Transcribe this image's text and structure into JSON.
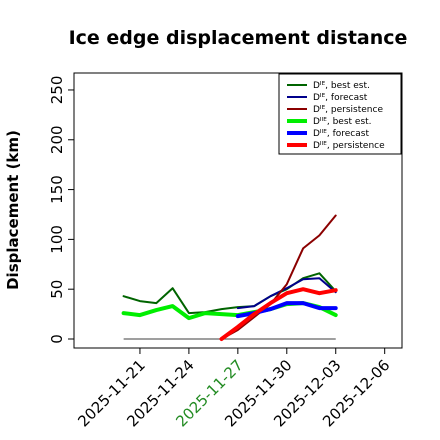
{
  "chart_data": {
    "type": "line",
    "title": "Ice edge displacement distance",
    "ylabel": "Displacement (km)",
    "xlabel": "",
    "ylim": [
      0,
      260
    ],
    "yticks": [
      "0",
      "50",
      "100",
      "150",
      "200",
      "250"
    ],
    "xlim": [
      "2025-11-18",
      "2025-12-07"
    ],
    "xticks": [
      "2025-11-21",
      "2025-11-24",
      "2025-11-27",
      "2025-11-30",
      "2025-12-03",
      "2025-12-06"
    ],
    "highlighted_xtick": "2025-11-27",
    "highlight_color": "#228B22",
    "grid": false,
    "legend_position": "top-right",
    "reference_line": {
      "x": [
        "2025-11-20",
        "2025-12-03"
      ],
      "y": 0,
      "color": "#666666"
    },
    "series": [
      {
        "name": "Dᴵᴱ, best est.",
        "color": "#006400",
        "width": 2,
        "x": [
          "2025-11-20",
          "2025-11-21",
          "2025-11-22",
          "2025-11-23",
          "2025-11-24",
          "2025-11-25",
          "2025-11-26",
          "2025-11-27",
          "2025-11-28",
          "2025-11-29",
          "2025-11-30",
          "2025-12-01",
          "2025-12-02",
          "2025-12-03"
        ],
        "values": [
          43,
          38,
          36,
          51,
          26,
          27,
          30,
          32,
          33,
          43,
          50,
          61,
          66,
          48
        ]
      },
      {
        "name": "Dᴵᴱ, forecast",
        "color": "#00008B",
        "width": 2,
        "x": [
          "2025-11-27",
          "2025-11-28",
          "2025-11-29",
          "2025-11-30",
          "2025-12-01",
          "2025-12-02",
          "2025-12-03"
        ],
        "values": [
          31,
          33,
          43,
          51,
          60,
          61,
          47
        ]
      },
      {
        "name": "Dᴵᴱ, persistence",
        "color": "#8B0000",
        "width": 2,
        "x": [
          "2025-11-26",
          "2025-11-27",
          "2025-11-28",
          "2025-11-29",
          "2025-11-30",
          "2025-12-01",
          "2025-12-02",
          "2025-12-03"
        ],
        "values": [
          0,
          9,
          22,
          35,
          55,
          91,
          104,
          124
        ]
      },
      {
        "name": "Dᴵᴵᴱ, best est.",
        "color": "#00EE00",
        "width": 4,
        "x": [
          "2025-11-20",
          "2025-11-21",
          "2025-11-22",
          "2025-11-23",
          "2025-11-24",
          "2025-11-25",
          "2025-11-26",
          "2025-11-27",
          "2025-11-28",
          "2025-11-29",
          "2025-11-30",
          "2025-12-01",
          "2025-12-02",
          "2025-12-03"
        ],
        "values": [
          26,
          24,
          29,
          33,
          21,
          26,
          25,
          24,
          27,
          30,
          35,
          36,
          32,
          24
        ]
      },
      {
        "name": "Dᴵᴵᴱ, forecast",
        "color": "#0000FF",
        "width": 4,
        "x": [
          "2025-11-27",
          "2025-11-28",
          "2025-11-29",
          "2025-11-30",
          "2025-12-01",
          "2025-12-02",
          "2025-12-03"
        ],
        "values": [
          23,
          26,
          30,
          36,
          36,
          31,
          31
        ]
      },
      {
        "name": "Dᴵᴵᴱ, persistence",
        "color": "#FF0000",
        "width": 4,
        "x": [
          "2025-11-26",
          "2025-11-27",
          "2025-11-28",
          "2025-11-29",
          "2025-11-30",
          "2025-12-01",
          "2025-12-02",
          "2025-12-03"
        ],
        "values": [
          0,
          12,
          25,
          36,
          46,
          50,
          46,
          49
        ]
      }
    ]
  }
}
